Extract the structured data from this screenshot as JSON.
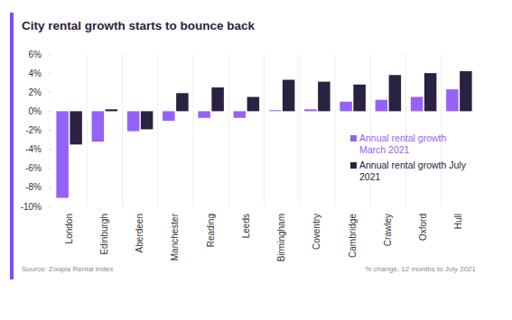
{
  "chart_data": {
    "type": "bar",
    "title": "City rental growth starts to bounce back",
    "categories": [
      "London",
      "Edinburgh",
      "Aberdeen",
      "Manchester",
      "Reading",
      "Leeds",
      "Birmingham",
      "Coventry",
      "Cambridge",
      "Crawley",
      "Oxford",
      "Hull"
    ],
    "series": [
      {
        "name": "Annual rental growth March 2021",
        "color": "#9462f7",
        "values": [
          -9.1,
          -3.2,
          -2.1,
          -1.0,
          -0.7,
          -0.7,
          0.1,
          0.2,
          1.0,
          1.2,
          1.5,
          2.3
        ]
      },
      {
        "name": "Annual rental growth July 2021",
        "color": "#2b2140",
        "values": [
          -3.5,
          0.2,
          -1.9,
          1.9,
          2.5,
          1.5,
          3.3,
          3.1,
          2.8,
          3.8,
          4.0,
          4.2
        ]
      }
    ],
    "ylim": [
      -10,
      6
    ],
    "yticks": [
      {
        "value": 6,
        "label": "6%"
      },
      {
        "value": 4,
        "label": "4%"
      },
      {
        "value": 2,
        "label": "2%"
      },
      {
        "value": 0,
        "label": "0%"
      },
      {
        "value": -2,
        "label": "-2%"
      },
      {
        "value": -4,
        "label": "-4%"
      },
      {
        "value": -6,
        "label": "-6%"
      },
      {
        "value": -8,
        "label": "-8%"
      },
      {
        "value": -10,
        "label": "-10%"
      }
    ],
    "grid": false,
    "legend": "lower right",
    "annotations": [
      "Source: Zoopla Rental Index",
      "% change, 12 months to July 2021"
    ]
  }
}
